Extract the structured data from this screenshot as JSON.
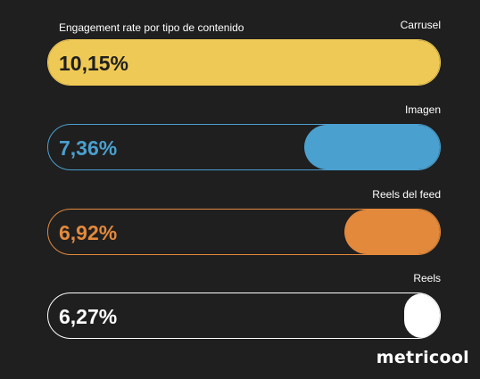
{
  "chart_data": {
    "type": "bar",
    "orientation": "horizontal",
    "title": "Engagement rate por tipo de contenido",
    "categories": [
      "Carrusel",
      "Imagen",
      "Reels del feed",
      "Reels"
    ],
    "values": [
      10.15,
      7.36,
      6.92,
      6.27
    ],
    "value_labels": [
      "10,15%",
      "7,36%",
      "6,92%",
      "6,27%"
    ],
    "colors": [
      "#efc955",
      "#4aa0cf",
      "#e3893c",
      "#ffffff"
    ],
    "value_colors": [
      "#1f1f1f",
      "#4aa0cf",
      "#e3893c",
      "#ffffff"
    ],
    "xlim": [
      0,
      10.15
    ],
    "grid": false,
    "legend": "none"
  },
  "brand": {
    "logo_text": "metricool"
  }
}
